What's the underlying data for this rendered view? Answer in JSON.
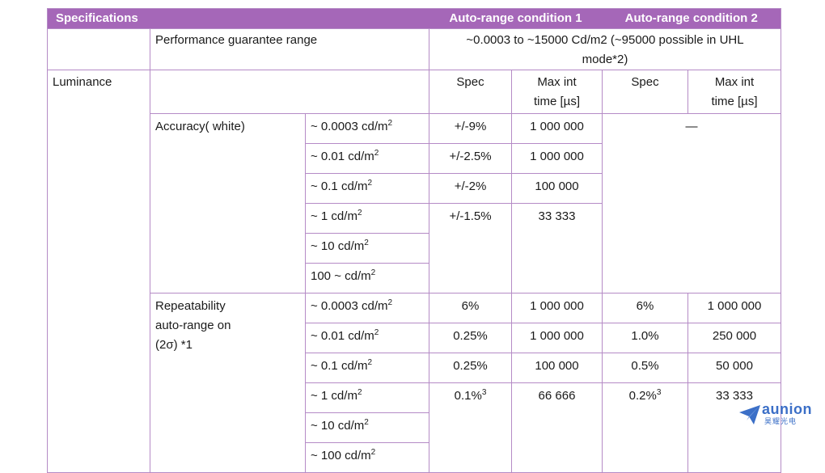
{
  "header": {
    "specifications": "Specifications",
    "condition1": "Auto-range condition 1",
    "condition2": "Auto-range condition 2"
  },
  "performance": {
    "label": "Performance guarantee range",
    "value_line1": "~0.0003 to ~15000 Cd/m2 (~95000 possible in UHL",
    "value_line2": "mode*2)"
  },
  "luminance": {
    "label": "Luminance",
    "spec1": "Spec",
    "maxint1_line1": "Max int",
    "maxint1_line2": "time [µs]",
    "spec2": "Spec",
    "maxint2_line1": "Max int",
    "maxint2_line2": "time [µs]"
  },
  "accuracy": {
    "label": "Accuracy( white)",
    "cond2_value": "—",
    "rows": [
      {
        "range": "~ 0.0003 cd/m",
        "sup": "2",
        "spec1": "+/-9%",
        "time1": "1 000 000"
      },
      {
        "range": "~ 0.01 cd/m",
        "sup": "2",
        "spec1": "+/-2.5%",
        "time1": "1 000 000"
      },
      {
        "range": "~ 0.1 cd/m",
        "sup": "2",
        "spec1": "+/-2%",
        "time1": "100 000"
      },
      {
        "range": "~ 1 cd/m",
        "sup": "2",
        "spec1": "+/-1.5%",
        "time1": "33 333"
      },
      {
        "range": "~ 10 cd/m",
        "sup": "2"
      },
      {
        "range": "100 ~  cd/m",
        "sup": "2"
      }
    ]
  },
  "repeatability": {
    "label_line1": "Repeatability",
    "label_line2": "auto-range on",
    "label_line3": "(2σ) *1",
    "rows": [
      {
        "range": "~ 0.0003 cd/m",
        "sup": "2",
        "spec1": "6%",
        "time1": "1 000 000",
        "spec2": "6%",
        "time2": "1 000 000"
      },
      {
        "range": "~ 0.01 cd/m",
        "sup": "2",
        "spec1": "0.25%",
        "time1": "1 000 000",
        "spec2": "1.0%",
        "time2": "250 000"
      },
      {
        "range": "~ 0.1 cd/m",
        "sup": "2",
        "spec1": "0.25%",
        "time1": "100 000",
        "spec2": "0.5%",
        "time2": "50 000"
      },
      {
        "range": "~ 1 cd/m",
        "sup": "2",
        "spec1": "0.1%",
        "spec1_sup": "3",
        "time1": "66 666",
        "spec2": "0.2%",
        "spec2_sup": "3",
        "time2": "33 333"
      },
      {
        "range": "~ 10 cd/m",
        "sup": "2"
      },
      {
        "range": "~ 100 cd/m",
        "sup": "2"
      }
    ]
  },
  "logo": {
    "word": "aunion",
    "cn": "昊耀光电"
  },
  "colors": {
    "header_bg": "#a567b8",
    "border": "#b58bc6",
    "logo": "#3b6fc7"
  }
}
